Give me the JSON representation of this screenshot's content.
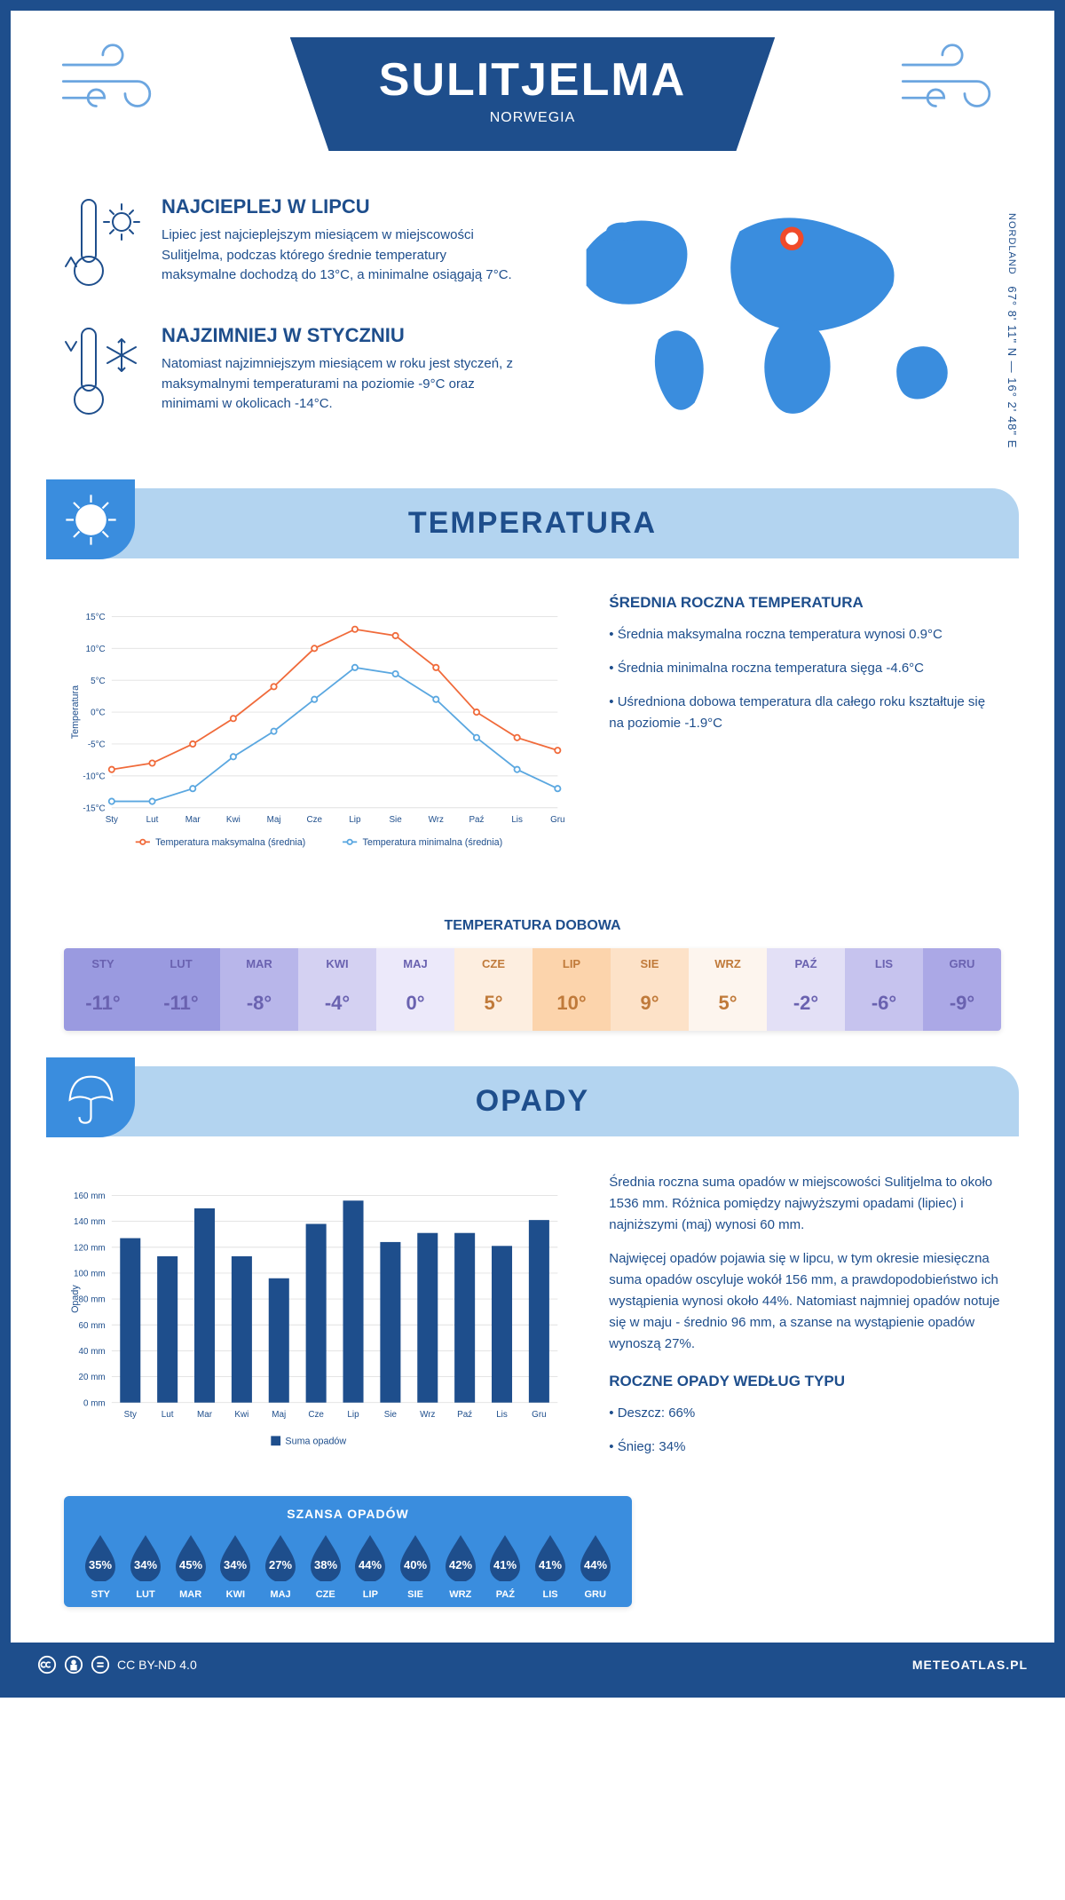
{
  "header": {
    "city": "SULITJELMA",
    "country": "NORWEGIA"
  },
  "coords": {
    "region": "NORDLAND",
    "text": "67° 8' 11\" N — 16° 2' 48\" E"
  },
  "facts": {
    "warmest": {
      "title": "NAJCIEPLEJ W LIPCU",
      "text": "Lipiec jest najcieplejszym miesiącem w miejscowości Sulitjelma, podczas którego średnie temperatury maksymalne dochodzą do 13°C, a minimalne osiągają 7°C."
    },
    "coldest": {
      "title": "NAJZIMNIEJ W STYCZNIU",
      "text": "Natomiast najzimniejszym miesiącem w roku jest styczeń, z maksymalnymi temperaturami na poziomie -9°C oraz minimami w okolicach -14°C."
    }
  },
  "temperature": {
    "section_title": "TEMPERATURA",
    "chart": {
      "type": "line",
      "months": [
        "Sty",
        "Lut",
        "Mar",
        "Kwi",
        "Maj",
        "Cze",
        "Lip",
        "Sie",
        "Wrz",
        "Paź",
        "Lis",
        "Gru"
      ],
      "ylabel": "Temperatura",
      "ylim": [
        -15,
        15
      ],
      "ytick_step": 5,
      "ytick_suffix": "°C",
      "series": {
        "max": {
          "label": "Temperatura maksymalna (średnia)",
          "color": "#f06a3a",
          "values": [
            -9,
            -8,
            -5,
            -1,
            4,
            10,
            13,
            12,
            7,
            0,
            -4,
            -6
          ]
        },
        "min": {
          "label": "Temperatura minimalna (średnia)",
          "color": "#5aa7e0",
          "values": [
            -14,
            -14,
            -12,
            -7,
            -3,
            2,
            7,
            6,
            2,
            -4,
            -9,
            -12
          ]
        }
      },
      "marker": "circle",
      "line_width": 2,
      "background": "#ffffff"
    },
    "summary": {
      "title": "ŚREDNIA ROCZNA TEMPERATURA",
      "bullets": [
        "Średnia maksymalna roczna temperatura wynosi 0.9°C",
        "Średnia minimalna roczna temperatura sięga -4.6°C",
        "Uśredniona dobowa temperatura dla całego roku kształtuje się na poziomie -1.9°C"
      ]
    },
    "daily": {
      "title": "TEMPERATURA DOBOWA",
      "months": [
        "STY",
        "LUT",
        "MAR",
        "KWI",
        "MAJ",
        "CZE",
        "LIP",
        "SIE",
        "WRZ",
        "PAŹ",
        "LIS",
        "GRU"
      ],
      "values": [
        "-11°",
        "-11°",
        "-8°",
        "-4°",
        "0°",
        "5°",
        "10°",
        "9°",
        "5°",
        "-2°",
        "-6°",
        "-9°"
      ],
      "cell_colors": [
        "#9a9ae0",
        "#9a9ae0",
        "#b8b6ea",
        "#d4d1f2",
        "#ece9fa",
        "#fdeee0",
        "#fcd4ac",
        "#fde2c8",
        "#fdf5ee",
        "#e3e0f6",
        "#c6c3ee",
        "#aba8e6"
      ],
      "text_color": "#6a62b0",
      "warm_text_color": "#c07a3a"
    }
  },
  "opady": {
    "section_title": "OPADY",
    "chart": {
      "type": "bar",
      "months": [
        "Sty",
        "Lut",
        "Mar",
        "Kwi",
        "Maj",
        "Cze",
        "Lip",
        "Sie",
        "Wrz",
        "Paź",
        "Lis",
        "Gru"
      ],
      "ylabel": "Opady",
      "ylim": [
        0,
        160
      ],
      "ytick_step": 20,
      "ytick_suffix": " mm",
      "values": [
        127,
        113,
        150,
        113,
        96,
        138,
        156,
        124,
        131,
        131,
        121,
        141
      ],
      "bar_color": "#1e4e8c",
      "legend_label": "Suma opadów",
      "background": "#ffffff"
    },
    "paragraphs": [
      "Średnia roczna suma opadów w miejscowości Sulitjelma to około 1536 mm. Różnica pomiędzy najwyższymi opadami (lipiec) i najniższymi (maj) wynosi 60 mm.",
      "Najwięcej opadów pojawia się w lipcu, w tym okresie miesięczna suma opadów oscyluje wokół 156 mm, a prawdopodobieństwo ich wystąpienia wynosi około 44%. Natomiast najmniej opadów notuje się w maju - średnio 96 mm, a szanse na wystąpienie opadów wynoszą 27%."
    ],
    "szansa": {
      "title": "SZANSA OPADÓW",
      "months": [
        "STY",
        "LUT",
        "MAR",
        "KWI",
        "MAJ",
        "CZE",
        "LIP",
        "SIE",
        "WRZ",
        "PAŹ",
        "LIS",
        "GRU"
      ],
      "values": [
        "35%",
        "34%",
        "45%",
        "34%",
        "27%",
        "38%",
        "44%",
        "40%",
        "42%",
        "41%",
        "41%",
        "44%"
      ],
      "drop_fill": "#1e4e8c",
      "bg": "#3a8dde"
    },
    "by_type": {
      "title": "ROCZNE OPADY WEDŁUG TYPU",
      "bullets": [
        "Deszcz: 66%",
        "Śnieg: 34%"
      ]
    }
  },
  "footer": {
    "license": "CC BY-ND 4.0",
    "site": "METEOATLAS.PL"
  }
}
